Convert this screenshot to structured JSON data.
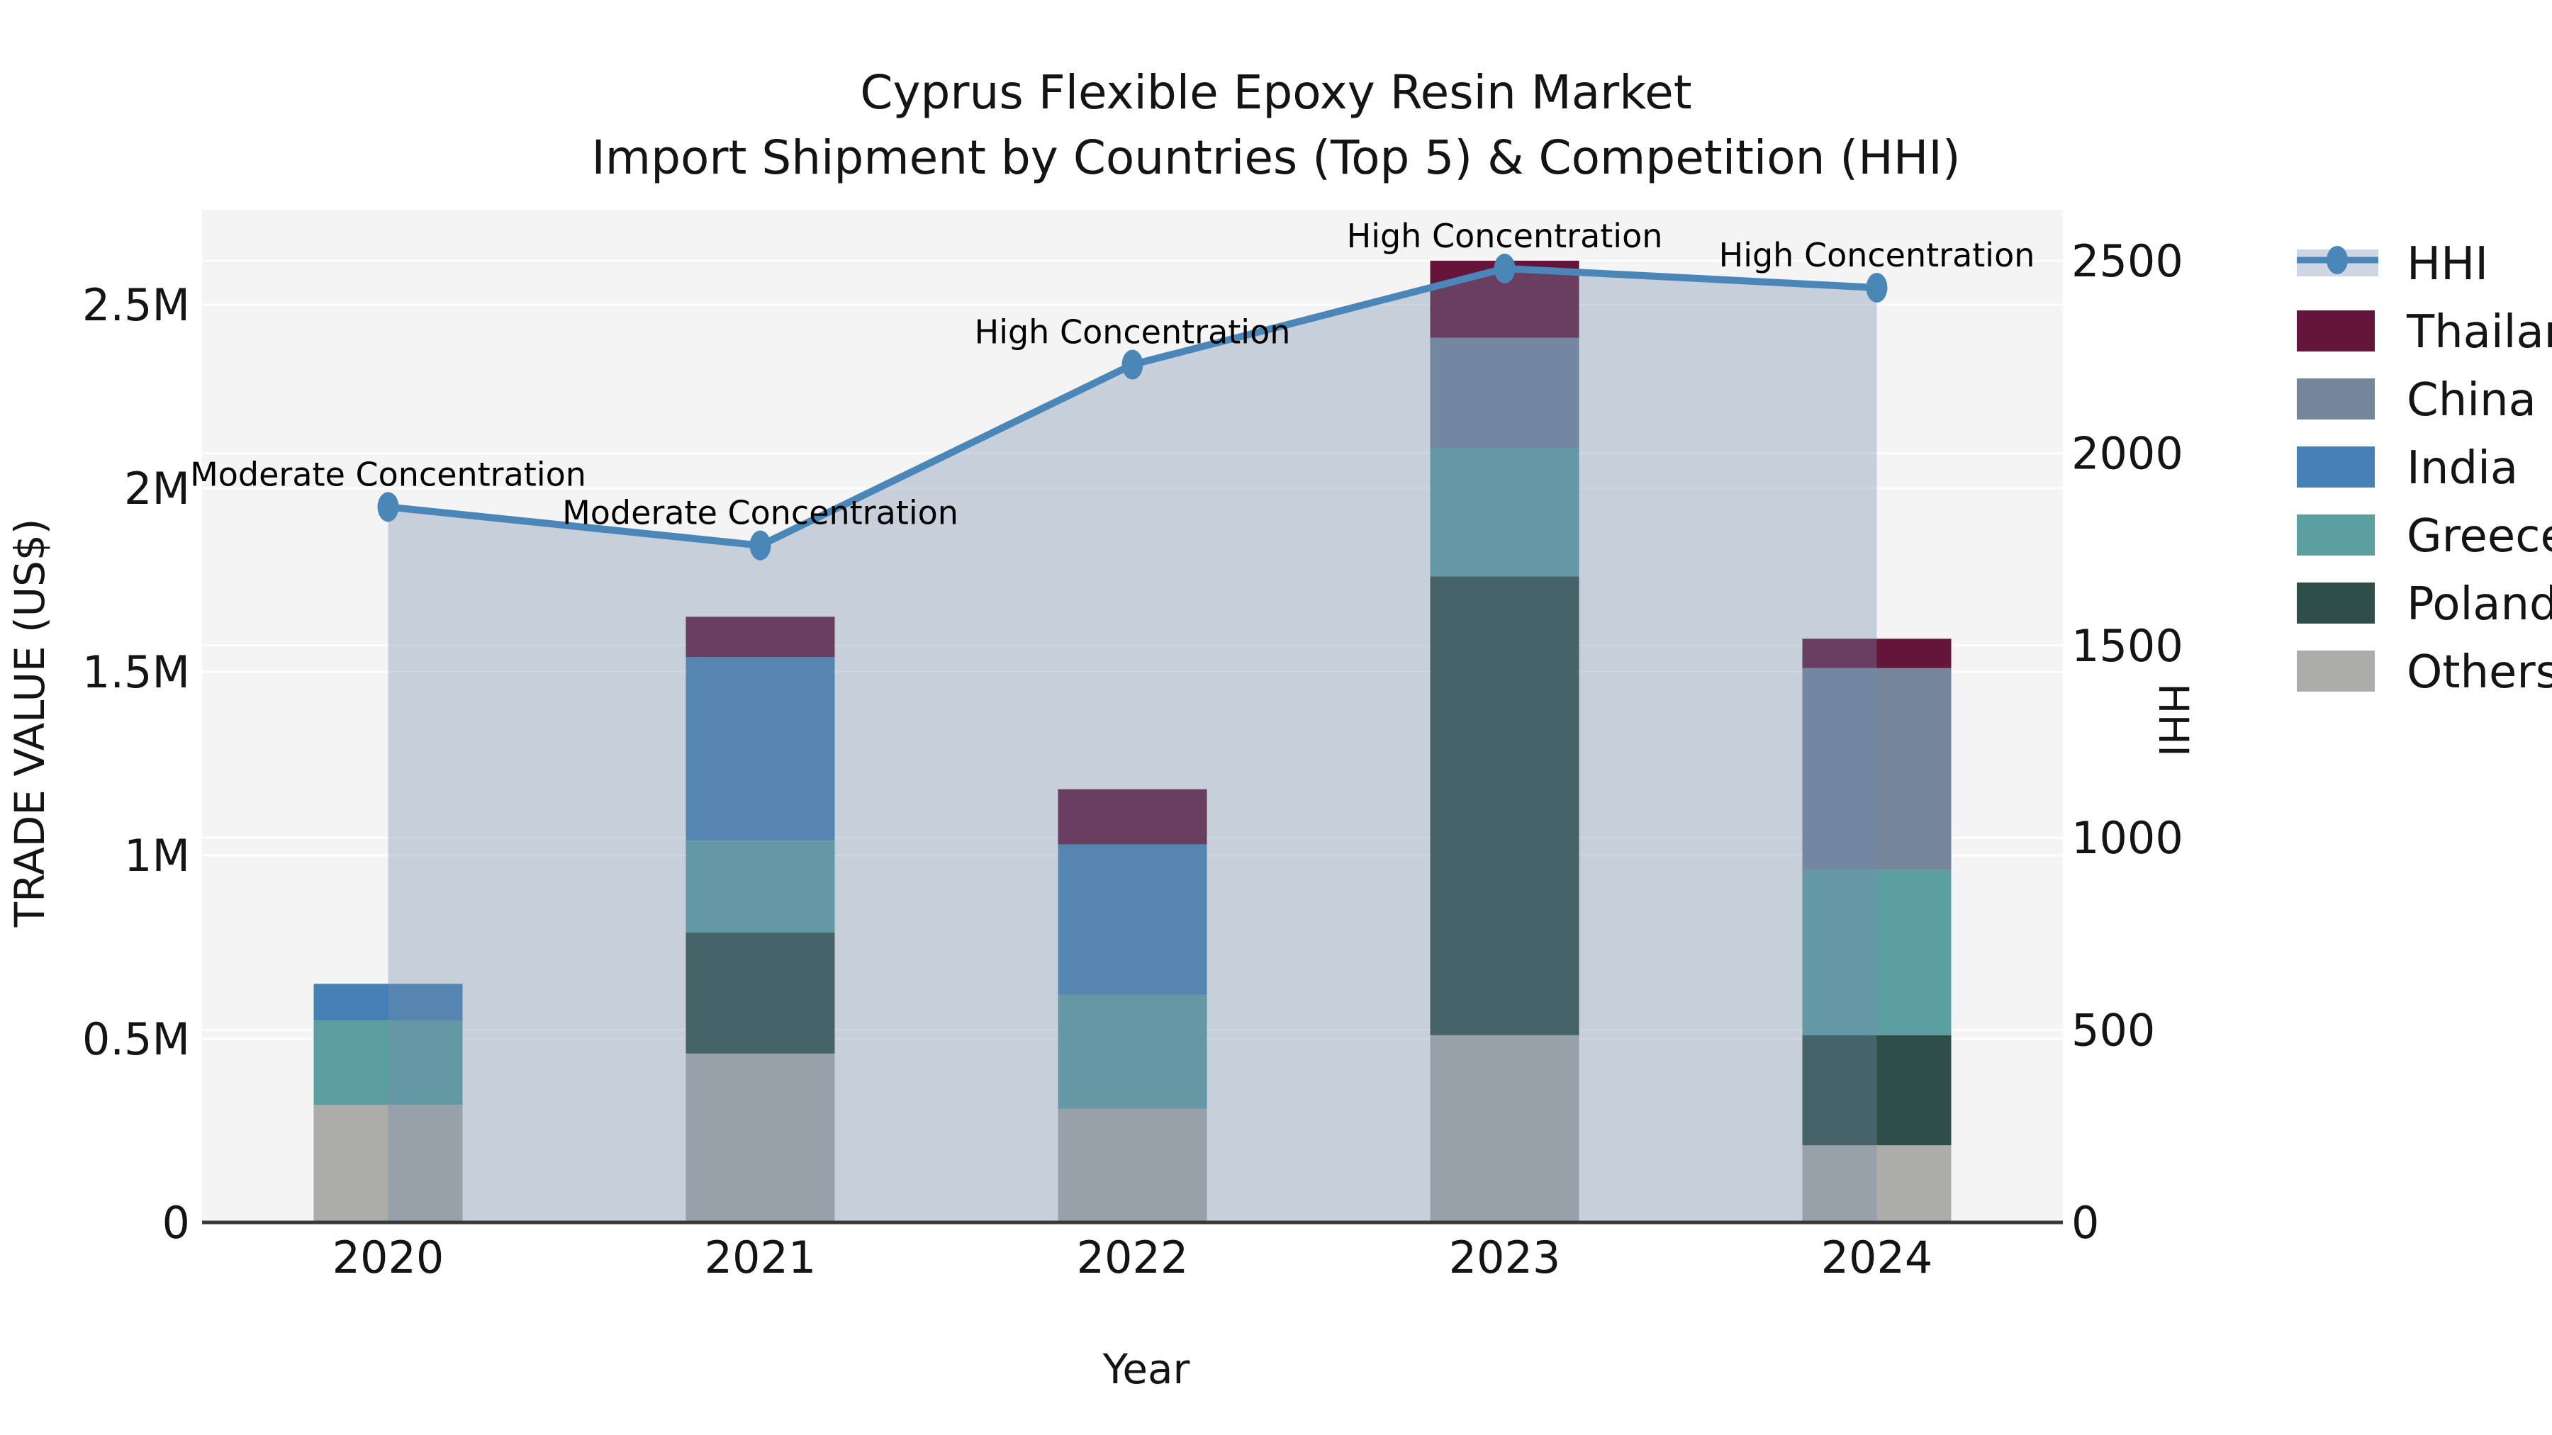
{
  "title": {
    "line1": "Cyprus Flexible Epoxy Resin Market",
    "line2": "Import Shipment by Countries (Top 5) & Competition (HHI)"
  },
  "x_axis": {
    "label": "Year",
    "ticks": [
      "2020",
      "2021",
      "2022",
      "2023",
      "2024"
    ]
  },
  "y_axis_left": {
    "label": "TRADE VALUE (US$)",
    "ticks": [
      "0",
      "0.5M",
      "1M",
      "1.5M",
      "2M",
      "2.5M"
    ],
    "tick_values": [
      0,
      500000,
      1000000,
      1500000,
      2000000,
      2500000
    ]
  },
  "y_axis_right": {
    "label": "HHI",
    "ticks": [
      "0",
      "500",
      "1000",
      "1500",
      "2000",
      "2500"
    ],
    "tick_values": [
      0,
      500,
      1000,
      1500,
      2000,
      2500
    ]
  },
  "legend": {
    "items": [
      "HHI",
      "Thailand",
      "China",
      "India",
      "Greece",
      "Poland",
      "Others"
    ]
  },
  "colors": {
    "hhi_line": "#4A86B8",
    "hhi_area_fill": "rgba(115,140,170,0.35)",
    "thailand": "#641539",
    "china": "#74849B",
    "india": "#4581B6",
    "greece": "#5C9FA1",
    "poland": "#2F4D49",
    "others": "#ACADAB",
    "plot_background": "#F4F4F5",
    "grid": "rgba(255,255,255,0.9)",
    "axis_line": "#3A3A3A",
    "text": "#141414"
  },
  "chart_data": {
    "type": "combo: stacked bar (left axis) + line with area (right axis)",
    "categories": [
      "2020",
      "2021",
      "2022",
      "2023",
      "2024"
    ],
    "bar_value_unit": "US$ trade value",
    "stack_order_bottom_to_top": [
      "Others",
      "Poland",
      "Greece",
      "India",
      "China",
      "Thailand"
    ],
    "series": [
      {
        "name": "Thailand",
        "color": "#641539",
        "values": [
          0,
          110000,
          150000,
          210000,
          80000
        ]
      },
      {
        "name": "China",
        "color": "#74849B",
        "values": [
          0,
          0,
          0,
          300000,
          550000
        ]
      },
      {
        "name": "India",
        "color": "#4581B6",
        "values": [
          100000,
          500000,
          410000,
          0,
          0
        ]
      },
      {
        "name": "Greece",
        "color": "#5C9FA1",
        "values": [
          230000,
          250000,
          310000,
          350000,
          450000
        ]
      },
      {
        "name": "Poland",
        "color": "#2F4D49",
        "values": [
          0,
          330000,
          0,
          1250000,
          300000
        ]
      },
      {
        "name": "Others",
        "color": "#ACADAB",
        "values": [
          320000,
          460000,
          310000,
          510000,
          210000
        ]
      }
    ],
    "bar_totals_estimate": [
      650000,
      1650000,
      1180000,
      2620000,
      1590000
    ],
    "line_series": {
      "name": "HHI",
      "axis": "right",
      "color": "#4A86B8",
      "area_fill": "rgba(115,140,170,0.35)",
      "values": [
        1860,
        1760,
        2230,
        2480,
        2430
      ]
    },
    "annotations": [
      {
        "category": "2020",
        "text": "Moderate Concentration"
      },
      {
        "category": "2021",
        "text": "Moderate Concentration"
      },
      {
        "category": "2022",
        "text": "High Concentration"
      },
      {
        "category": "2023",
        "text": "High Concentration"
      },
      {
        "category": "2024",
        "text": "High Concentration"
      }
    ],
    "ylim_left": [
      0,
      2780000
    ],
    "ylim_right": [
      0,
      2680
    ],
    "grid": "horizontal gridlines for both axes, white on light-gray plot background",
    "legend_position": "outside right, top"
  }
}
